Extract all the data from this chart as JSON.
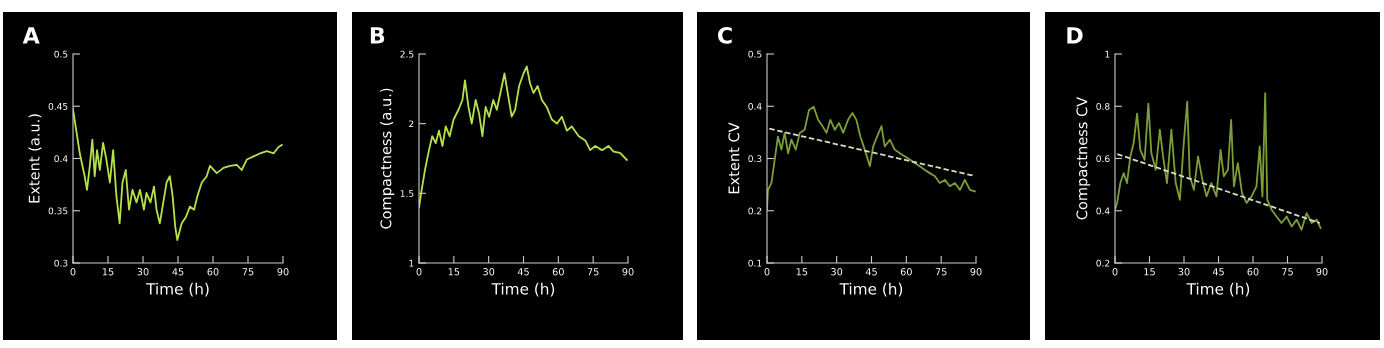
{
  "chart_data": [
    {
      "type": "line",
      "title": "A",
      "xlabel": "Time (h)",
      "ylabel": "Extent (a.u.)",
      "xlim": [
        0,
        90
      ],
      "xticks": [
        0,
        15,
        30,
        45,
        60,
        75,
        90
      ],
      "ylim": [
        0.3,
        0.5
      ],
      "yticks": [
        0.3,
        0.35,
        0.4,
        0.45,
        0.5
      ],
      "x": [
        0,
        1.4,
        2.9,
        5,
        6,
        7.2,
        8.3,
        9.3,
        10.3,
        11.5,
        12.9,
        14.3,
        15.8,
        17.2,
        18.6,
        20,
        21.2,
        22.6,
        24,
        25.5,
        27.2,
        28.7,
        30.4,
        31.5,
        33.2,
        34.7,
        35.8,
        37.2,
        38.7,
        40.1,
        41.5,
        42.7,
        43.8,
        44.7,
        46.6,
        48.4,
        50.1,
        51.9,
        53.3,
        55.2,
        57.3,
        58.7,
        61.6,
        64.5,
        67.3,
        70.2,
        72.3,
        74.5,
        77.4,
        80.2,
        83.1,
        86,
        88.1,
        89.5
      ],
      "series": [
        {
          "color": "#b5e24a",
          "values": [
            0.447,
            0.427,
            0.405,
            0.383,
            0.37,
            0.393,
            0.418,
            0.383,
            0.408,
            0.389,
            0.415,
            0.399,
            0.377,
            0.408,
            0.364,
            0.338,
            0.377,
            0.389,
            0.351,
            0.37,
            0.358,
            0.37,
            0.351,
            0.367,
            0.358,
            0.373,
            0.351,
            0.338,
            0.358,
            0.377,
            0.383,
            0.364,
            0.335,
            0.322,
            0.338,
            0.344,
            0.354,
            0.351,
            0.364,
            0.377,
            0.383,
            0.393,
            0.386,
            0.391,
            0.393,
            0.394,
            0.389,
            0.399,
            0.402,
            0.405,
            0.407,
            0.405,
            0.411,
            0.413
          ]
        }
      ]
    },
    {
      "type": "line",
      "title": "B",
      "xlabel": "Time (h)",
      "ylabel": "Compactness (a.u.)",
      "xlim": [
        0,
        90
      ],
      "xticks": [
        0,
        15,
        30,
        45,
        60,
        75,
        90
      ],
      "ylim": [
        1,
        2.5
      ],
      "yticks": [
        1,
        1.5,
        2,
        2.5
      ],
      "x": [
        0,
        1.1,
        2.6,
        4.3,
        5.7,
        7.2,
        8.6,
        10.1,
        11.5,
        13.2,
        14.9,
        17,
        18.7,
        19.8,
        21.3,
        22.7,
        24.4,
        25.9,
        27.3,
        28.7,
        30.2,
        32,
        33.5,
        35.3,
        36.8,
        38.5,
        39.9,
        41.4,
        43.1,
        45,
        46.4,
        47.8,
        49.3,
        51.1,
        52.9,
        55,
        57.2,
        59.4,
        61.5,
        63.7,
        65.8,
        68.8,
        71.6,
        73.7,
        75.9,
        78.8,
        81.6,
        83.8,
        86.6,
        89.5
      ],
      "series": [
        {
          "color": "#b5e24a",
          "values": [
            1.4,
            1.52,
            1.67,
            1.81,
            1.91,
            1.86,
            1.95,
            1.84,
            1.98,
            1.91,
            2.03,
            2.1,
            2.17,
            2.31,
            2.12,
            2.0,
            2.17,
            2.07,
            1.91,
            2.12,
            2.05,
            2.17,
            2.1,
            2.24,
            2.36,
            2.19,
            2.05,
            2.1,
            2.27,
            2.36,
            2.41,
            2.29,
            2.22,
            2.27,
            2.17,
            2.12,
            2.03,
            2.0,
            2.05,
            1.95,
            1.98,
            1.91,
            1.88,
            1.81,
            1.84,
            1.81,
            1.84,
            1.8,
            1.79,
            1.74
          ]
        }
      ]
    },
    {
      "type": "line",
      "title": "C",
      "xlabel": "Time (h)",
      "ylabel": "Extent CV",
      "xlim": [
        0,
        90
      ],
      "xticks": [
        0,
        15,
        30,
        45,
        60,
        75,
        90
      ],
      "ylim": [
        0.1,
        0.5
      ],
      "yticks": [
        0.1,
        0.2,
        0.3,
        0.4,
        0.5
      ],
      "x": [
        0,
        0.4,
        1.9,
        3.7,
        4.7,
        6.2,
        7.6,
        9.1,
        10.5,
        12.4,
        14.1,
        16.2,
        18.1,
        20.1,
        22,
        23.9,
        25.6,
        27.3,
        29.2,
        31,
        32.8,
        34.9,
        36.8,
        38.5,
        40.2,
        42.1,
        44.3,
        45.7,
        47.4,
        49.3,
        50.7,
        52.9,
        55,
        57.2,
        59.4,
        61.5,
        63.7,
        65.8,
        68,
        70.1,
        72.3,
        74.4,
        76.6,
        78.7,
        80.9,
        83.1,
        85.2,
        87.4,
        89.5
      ],
      "series": [
        {
          "color": "#7c9e38",
          "values": [
            0.202,
            0.24,
            0.253,
            0.31,
            0.342,
            0.317,
            0.349,
            0.31,
            0.336,
            0.317,
            0.349,
            0.355,
            0.393,
            0.399,
            0.374,
            0.362,
            0.349,
            0.374,
            0.355,
            0.368,
            0.349,
            0.374,
            0.387,
            0.374,
            0.342,
            0.317,
            0.285,
            0.323,
            0.342,
            0.362,
            0.323,
            0.336,
            0.317,
            0.31,
            0.304,
            0.298,
            0.291,
            0.285,
            0.278,
            0.272,
            0.266,
            0.253,
            0.259,
            0.247,
            0.253,
            0.24,
            0.259,
            0.24,
            0.237
          ]
        },
        {
          "type": "line",
          "color": "#d8dcc0",
          "line_style": "dashed",
          "x": [
            1,
            45,
            89
          ],
          "values": [
            0.357,
            0.312,
            0.267
          ]
        }
      ]
    },
    {
      "type": "line",
      "title": "D",
      "xlabel": "Time (h)",
      "ylabel": "Compactness CV",
      "xlim": [
        0,
        90
      ],
      "xticks": [
        0,
        15,
        30,
        45,
        60,
        75,
        90
      ],
      "ylim": [
        0.2,
        1
      ],
      "yticks": [
        0.2,
        0.4,
        0.6,
        0.8,
        1
      ],
      "x": [
        0,
        0.9,
        2.3,
        3.8,
        5.2,
        6.7,
        8.1,
        9.6,
        11,
        12.9,
        14.5,
        15.8,
        17.7,
        19.5,
        20.9,
        22.6,
        24.5,
        26.4,
        28.2,
        29.9,
        31.4,
        32.5,
        34.3,
        36.1,
        38,
        39.8,
        41.9,
        44.1,
        45.9,
        47.3,
        49.1,
        50.5,
        51.7,
        53.4,
        55.2,
        57.2,
        59.4,
        61.5,
        62.9,
        64.1,
        65.3,
        66.2,
        68.1,
        70.2,
        72.4,
        74.6,
        76.8,
        79,
        81.1,
        83.3,
        85.5,
        87.7,
        89.4
      ],
      "series": [
        {
          "color": "#7c9e38",
          "values": [
            0.404,
            0.43,
            0.506,
            0.544,
            0.506,
            0.608,
            0.659,
            0.772,
            0.633,
            0.595,
            0.81,
            0.621,
            0.557,
            0.71,
            0.608,
            0.506,
            0.71,
            0.506,
            0.442,
            0.659,
            0.818,
            0.532,
            0.48,
            0.608,
            0.519,
            0.455,
            0.506,
            0.455,
            0.633,
            0.532,
            0.557,
            0.748,
            0.493,
            0.582,
            0.468,
            0.43,
            0.455,
            0.493,
            0.646,
            0.455,
            0.85,
            0.442,
            0.404,
            0.378,
            0.353,
            0.378,
            0.34,
            0.366,
            0.327,
            0.391,
            0.353,
            0.366,
            0.334
          ]
        },
        {
          "type": "line",
          "color": "#d8dcc0",
          "line_style": "dashed",
          "x": [
            1,
            45,
            89
          ],
          "values": [
            0.617,
            0.485,
            0.353
          ]
        }
      ]
    }
  ]
}
